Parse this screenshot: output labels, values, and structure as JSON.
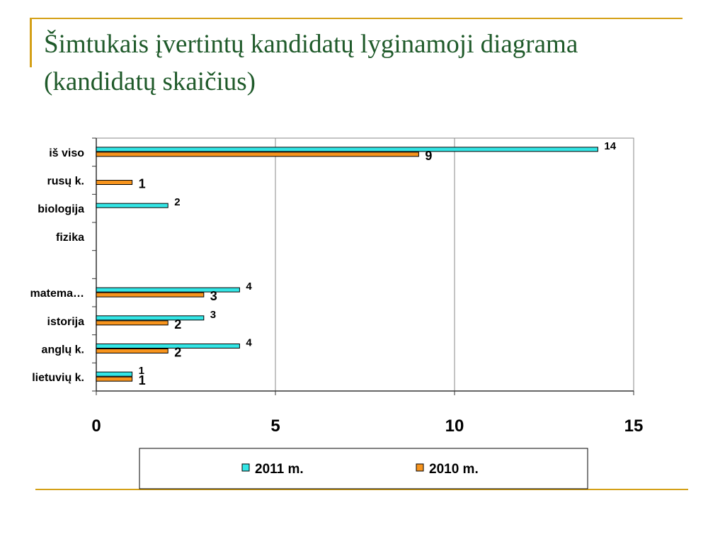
{
  "slide": {
    "title": "Šimtukais įvertintų kandidatų lyginamoji diagrama (kandidatų skaičius)",
    "accent_color": "#d4a017",
    "title_color": "#1f5a2a"
  },
  "chart_data": {
    "type": "bar",
    "orientation": "horizontal",
    "title": "",
    "xlabel": "",
    "ylabel": "",
    "categories": [
      "iš viso",
      "rusų k.",
      "biologija",
      "fizika",
      "",
      "matema…",
      "istorija",
      "anglų k.",
      "lietuvių k."
    ],
    "series": [
      {
        "name": "2011 m.",
        "color": "#33e6e6",
        "values": [
          14,
          null,
          2,
          null,
          null,
          4,
          3,
          4,
          1
        ]
      },
      {
        "name": "2010 m.",
        "color": "#f7941d",
        "values": [
          9,
          1,
          null,
          null,
          null,
          3,
          2,
          2,
          1
        ]
      }
    ],
    "xlim": [
      0,
      15
    ],
    "xticks": [
      "0",
      "5",
      "10",
      "15"
    ],
    "grid": "vertical",
    "legend": "bottom"
  }
}
